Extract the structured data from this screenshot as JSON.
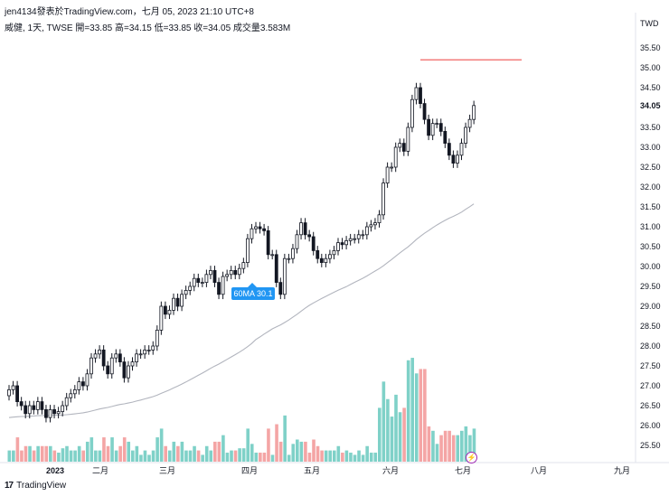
{
  "header": {
    "publish_line": "jen4134發表於TradingView.com，七月 05, 2023 21:10 UTC+8",
    "ohlc_line": "威健, 1天, TWSE  開=33.85  高=34.15  低=33.85  收=34.05  成交量3.583M"
  },
  "currency": "TWD",
  "footer": {
    "logo": "17",
    "brand": "TradingView"
  },
  "indicator": {
    "ma_label": "60MA 30.1",
    "ma_color": "#b2b5be"
  },
  "colors": {
    "up": "#26a69a",
    "down": "#ef5350",
    "vol_up": "#7fd1c8",
    "vol_down": "#f4a5a5",
    "candle_up": "#ffffff",
    "candle_down": "#131722",
    "marker": "#9c27b0"
  },
  "icons": {
    "event_marker": "lightning-icon"
  },
  "chart_data": {
    "type": "candlestick",
    "y_axis": {
      "min": 25.1,
      "max": 36.0,
      "ticks": [
        "35.50",
        "35.00",
        "34.50",
        "34.05",
        "33.50",
        "33.00",
        "32.50",
        "32.00",
        "31.50",
        "31.00",
        "30.50",
        "30.00",
        "29.50",
        "29.00",
        "28.50",
        "28.00",
        "27.50",
        "27.00",
        "26.50",
        "26.00",
        "25.50"
      ],
      "last_price": "34.05"
    },
    "x_axis": {
      "labels": [
        "2023",
        "二月",
        "三月",
        "四月",
        "五月",
        "六月",
        "七月",
        "八月",
        "九月"
      ]
    },
    "horizontal_line": {
      "value": 35.2,
      "color": "#ef5350"
    },
    "closes": [
      26.9,
      27.0,
      26.6,
      26.5,
      26.3,
      26.5,
      26.4,
      26.6,
      26.4,
      26.2,
      26.4,
      26.3,
      26.35,
      26.5,
      26.7,
      26.8,
      26.9,
      27.1,
      27.0,
      27.3,
      27.7,
      27.8,
      27.9,
      27.5,
      27.3,
      27.7,
      27.8,
      27.6,
      27.2,
      27.5,
      27.6,
      27.8,
      27.8,
      27.9,
      27.9,
      28.0,
      28.4,
      29.0,
      28.8,
      28.9,
      29.2,
      29.0,
      29.3,
      29.4,
      29.5,
      29.7,
      29.6,
      29.6,
      29.8,
      29.9,
      29.6,
      29.3,
      29.75,
      29.8,
      29.9,
      29.8,
      29.95,
      30.1,
      30.7,
      30.95,
      31.0,
      30.95,
      30.9,
      30.3,
      30.3,
      29.6,
      29.3,
      30.2,
      30.2,
      30.45,
      30.8,
      31.1,
      30.8,
      30.75,
      30.4,
      30.2,
      30.1,
      30.2,
      30.3,
      30.4,
      30.6,
      30.55,
      30.65,
      30.7,
      30.7,
      30.8,
      30.8,
      31.0,
      31.05,
      31.1,
      31.3,
      32.1,
      32.5,
      32.5,
      33.0,
      33.1,
      32.9,
      33.5,
      34.2,
      34.5,
      34.1,
      33.7,
      33.3,
      33.6,
      33.6,
      33.4,
      33.1,
      32.8,
      32.6,
      32.8,
      33.1,
      33.5,
      33.7,
      34.05
    ],
    "volume_scale_max": 4.0
  }
}
